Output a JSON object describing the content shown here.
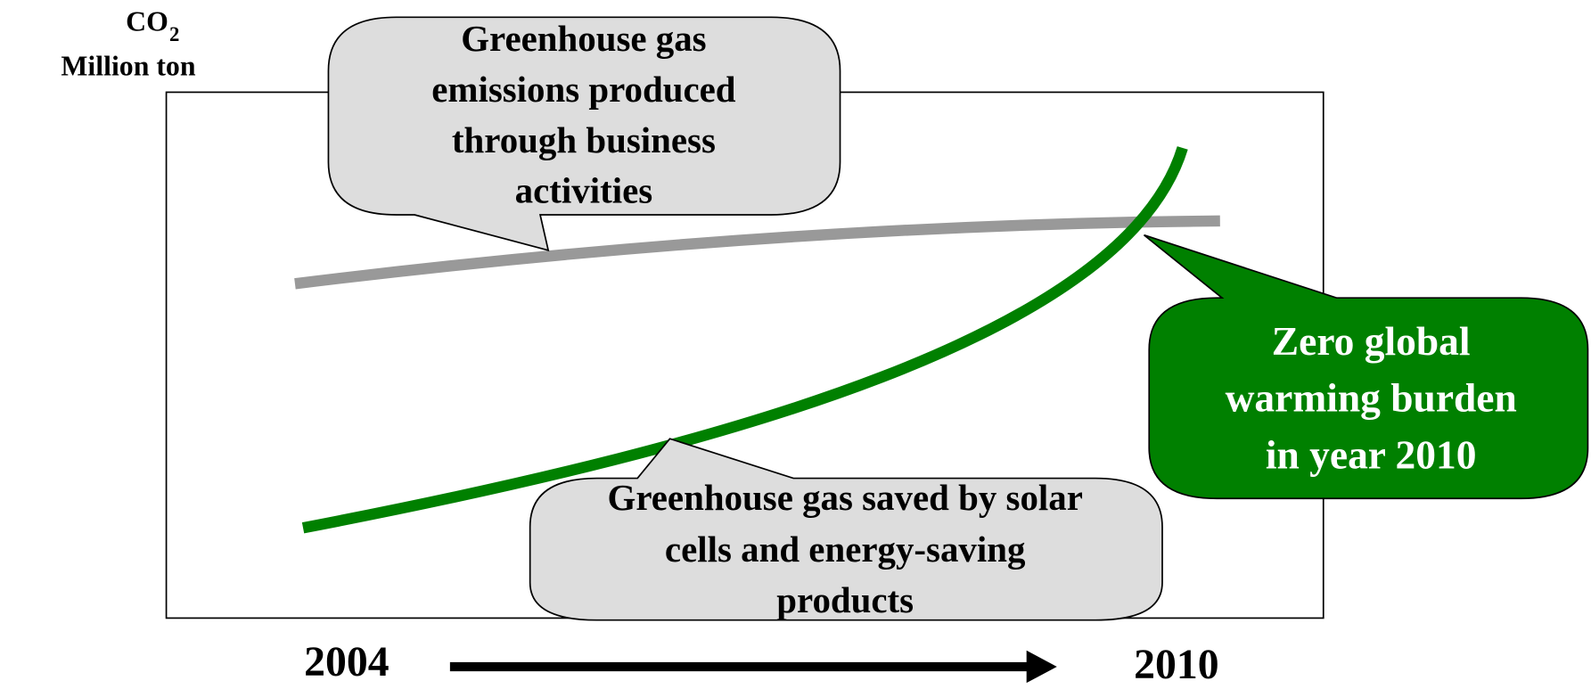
{
  "axis_label": {
    "symbol": "CO",
    "subscript": "2",
    "unit": "Million ton"
  },
  "callouts": [
    {
      "lines": [
        "Greenhouse gas",
        "emissions produced",
        "through business",
        "activities"
      ]
    },
    {
      "lines": [
        "Greenhouse gas saved by solar",
        "cells and energy-saving",
        "products"
      ]
    },
    {
      "lines": [
        "Zero global",
        "warming burden",
        "in year 2010"
      ]
    }
  ],
  "timeline": {
    "start": "2004",
    "end": "2010"
  }
}
